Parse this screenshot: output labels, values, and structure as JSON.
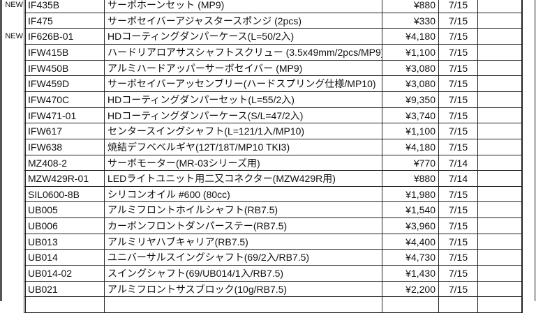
{
  "rows": [
    {
      "new": "NEW",
      "code": "IF435B",
      "name": "サーボホーンセット (MP9)",
      "price": "¥880",
      "date": "7/15"
    },
    {
      "new": "",
      "code": "IF475",
      "name": "サーボセイバーアジャスタースポンジ (2pcs)",
      "price": "¥330",
      "date": "7/15"
    },
    {
      "new": "NEW",
      "code": "IF626B-01",
      "name": "HDコーティングダンパーケース(L=50/2入)",
      "price": "¥4,180",
      "date": "7/15"
    },
    {
      "new": "",
      "code": "IFW415B",
      "name": "ハードリアロアサスシャフトスクリュー (3.5x49mm/2pcs/MP9)",
      "price": "¥1,100",
      "date": "7/15"
    },
    {
      "new": "",
      "code": "IFW450B",
      "name": "アルミハードアッパーサーボセイバー (MP9)",
      "price": "¥3,080",
      "date": "7/15"
    },
    {
      "new": "",
      "code": "IFW459D",
      "name": "サーボセイバーアッセンブリー(ハードスプリング仕様/MP10)",
      "price": "¥3,080",
      "date": "7/15"
    },
    {
      "new": "",
      "code": "IFW470C",
      "name": "HDコーティングダンパーセット(L=55/2入)",
      "price": "¥9,350",
      "date": "7/15"
    },
    {
      "new": "",
      "code": "IFW471-01",
      "name": "HDコーティングダンパーケース(S/L=47/2入)",
      "price": "¥3,740",
      "date": "7/15"
    },
    {
      "new": "",
      "code": "IFW617",
      "name": "センタースイングシャフト(L=121/1入/MP10)",
      "price": "¥1,100",
      "date": "7/15"
    },
    {
      "new": "",
      "code": "IFW638",
      "name": "焼結デフベベルギヤ(12T/18T/MP10 TKI3)",
      "price": "¥4,180",
      "date": "7/15"
    },
    {
      "new": "",
      "code": "MZ408-2",
      "name": "サーボモーター(MR-03シリーズ用)",
      "price": "¥770",
      "date": "7/14"
    },
    {
      "new": "",
      "code": "MZW429R-01",
      "name": "LEDライトユニット用二又コネクター(MZW429R用)",
      "price": "¥880",
      "date": "7/14"
    },
    {
      "new": "",
      "code": "SIL0600-8B",
      "name": "シリコンオイル #600 (80cc)",
      "price": "¥1,980",
      "date": "7/15"
    },
    {
      "new": "",
      "code": "UB005",
      "name": "アルミフロントホイルシャフト(RB7.5)",
      "price": "¥1,540",
      "date": "7/15"
    },
    {
      "new": "",
      "code": "UB006",
      "name": "カーボンフロントダンパーステー(RB7.5)",
      "price": "¥3,960",
      "date": "7/15"
    },
    {
      "new": "",
      "code": "UB013",
      "name": "アルミリヤハブキャリア(RB7.5)",
      "price": "¥4,400",
      "date": "7/15"
    },
    {
      "new": "",
      "code": "UB014",
      "name": "ユニバーサルスイングシャフト(69/2入/RB7.5)",
      "price": "¥4,730",
      "date": "7/15"
    },
    {
      "new": "",
      "code": "UB014-02",
      "name": "スイングシャフト(69/UB014/1入/RB7.5)",
      "price": "¥1,430",
      "date": "7/15"
    },
    {
      "new": "",
      "code": "UB021",
      "name": "アルミフロントサスブロック(10g/RB7.5)",
      "price": "¥2,200",
      "date": "7/15"
    },
    {
      "new": "",
      "code": "",
      "name": "",
      "price": "",
      "date": ""
    }
  ]
}
